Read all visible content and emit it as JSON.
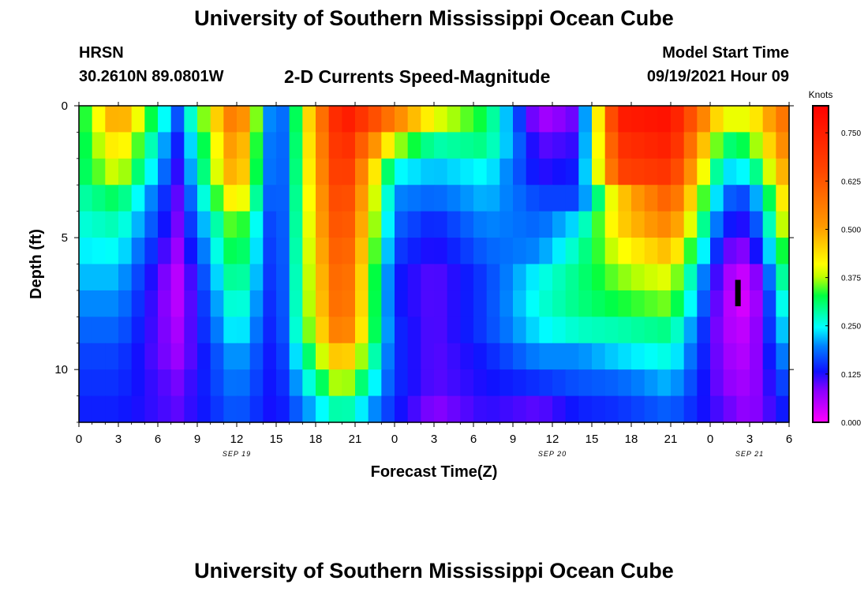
{
  "header": {
    "title": "University of Southern Mississippi Ocean Cube",
    "station": "HRSN",
    "coords": "30.2610N  89.0801W",
    "subtitle": "2-D Currents Speed-Magnitude",
    "start_label": "Model Start Time",
    "start_value": "09/19/2021 Hour 09",
    "footer_title": "University of Southern Mississippi Ocean Cube"
  },
  "chart_data": {
    "type": "heatmap",
    "title": "2-D Currents Speed-Magnitude",
    "xlabel": "Forecast Time(Z)",
    "ylabel": "Depth (ft)",
    "x_ticks": [
      "0",
      "3",
      "6",
      "9",
      "12",
      "15",
      "18",
      "21",
      "0",
      "3",
      "6",
      "9",
      "12",
      "15",
      "18",
      "21",
      "0",
      "3",
      "6"
    ],
    "date_labels": [
      {
        "label": "SEP 19",
        "hour": 12
      },
      {
        "label": "SEP 20",
        "hour": 36
      },
      {
        "label": "SEP 21",
        "hour": 51
      }
    ],
    "x_range_hours": [
      0,
      54
    ],
    "y_ticks": [
      0,
      5,
      10
    ],
    "y_range": [
      0,
      12
    ],
    "colorbar": {
      "label": "Knots",
      "ticks": [
        "0.000",
        "0.125",
        "0.250",
        "0.375",
        "0.500",
        "0.625",
        "0.750"
      ],
      "range": [
        0,
        0.82
      ]
    },
    "depths": [
      0.5,
      1.5,
      2.5,
      3.5,
      4.5,
      5.5,
      6.5,
      7.5,
      8.5,
      9.5,
      10.5,
      11.5
    ],
    "time_samples": [
      0,
      3,
      7.5,
      12,
      15,
      20,
      24,
      27,
      31,
      35,
      38,
      41,
      45,
      49,
      51,
      54
    ],
    "speed": [
      [
        0.3,
        0.52,
        0.17,
        0.6,
        0.12,
        0.78,
        0.55,
        0.4,
        0.32,
        0.06,
        0.1,
        0.75,
        0.78,
        0.4,
        0.4,
        0.6
      ],
      [
        0.3,
        0.45,
        0.14,
        0.55,
        0.12,
        0.75,
        0.38,
        0.28,
        0.3,
        0.1,
        0.12,
        0.7,
        0.75,
        0.3,
        0.33,
        0.57
      ],
      [
        0.3,
        0.4,
        0.12,
        0.53,
        0.12,
        0.73,
        0.25,
        0.22,
        0.25,
        0.12,
        0.14,
        0.66,
        0.7,
        0.23,
        0.25,
        0.53
      ],
      [
        0.28,
        0.32,
        0.1,
        0.46,
        0.12,
        0.7,
        0.2,
        0.18,
        0.22,
        0.16,
        0.16,
        0.45,
        0.62,
        0.18,
        0.16,
        0.48
      ],
      [
        0.26,
        0.28,
        0.09,
        0.38,
        0.12,
        0.68,
        0.18,
        0.14,
        0.2,
        0.18,
        0.24,
        0.45,
        0.55,
        0.14,
        0.12,
        0.43
      ],
      [
        0.24,
        0.25,
        0.07,
        0.35,
        0.12,
        0.66,
        0.16,
        0.12,
        0.18,
        0.2,
        0.28,
        0.4,
        0.48,
        0.1,
        0.08,
        0.38
      ],
      [
        0.22,
        0.22,
        0.05,
        0.32,
        0.12,
        0.64,
        0.14,
        0.1,
        0.16,
        0.25,
        0.3,
        0.36,
        0.4,
        0.07,
        0.03,
        0.34
      ],
      [
        0.2,
        0.2,
        0.05,
        0.29,
        0.12,
        0.63,
        0.14,
        0.1,
        0.16,
        0.26,
        0.3,
        0.33,
        0.36,
        0.06,
        0.02,
        0.3
      ],
      [
        0.18,
        0.18,
        0.06,
        0.26,
        0.12,
        0.6,
        0.15,
        0.1,
        0.16,
        0.24,
        0.27,
        0.28,
        0.3,
        0.06,
        0.04,
        0.26
      ],
      [
        0.16,
        0.16,
        0.07,
        0.22,
        0.12,
        0.5,
        0.15,
        0.1,
        0.14,
        0.2,
        0.2,
        0.23,
        0.26,
        0.07,
        0.05,
        0.22
      ],
      [
        0.15,
        0.15,
        0.09,
        0.2,
        0.12,
        0.4,
        0.15,
        0.1,
        0.13,
        0.15,
        0.17,
        0.18,
        0.22,
        0.08,
        0.06,
        0.18
      ],
      [
        0.14,
        0.14,
        0.1,
        0.18,
        0.12,
        0.3,
        0.14,
        0.08,
        0.12,
        0.1,
        0.14,
        0.15,
        0.18,
        0.1,
        0.07,
        0.15
      ]
    ]
  }
}
